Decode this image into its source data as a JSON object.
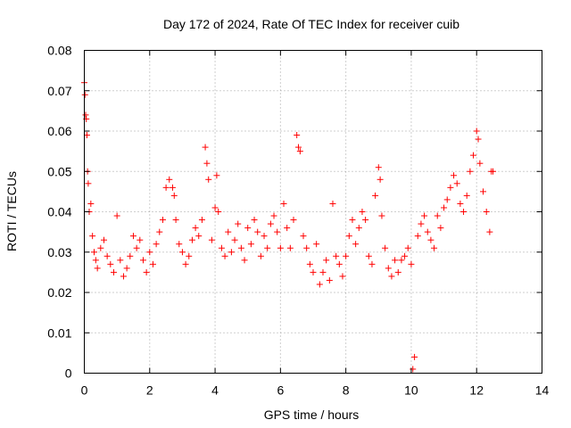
{
  "chart_data": {
    "type": "scatter",
    "title": "Day 172 of 2024, Rate Of TEC Index for receiver cuib",
    "xlabel": "GPS time / hours",
    "ylabel": "ROTI / TECUs",
    "xlim": [
      0,
      14
    ],
    "ylim": [
      0,
      0.08
    ],
    "xticks": [
      0,
      2,
      4,
      6,
      8,
      10,
      12,
      14
    ],
    "xtick_labels": [
      "0",
      "2",
      "4",
      "6",
      "8",
      "10",
      "12",
      "14"
    ],
    "yticks": [
      0,
      0.01,
      0.02,
      0.03,
      0.04,
      0.05,
      0.06,
      0.07,
      0.08
    ],
    "ytick_labels": [
      "0",
      "0.01",
      "0.02",
      "0.03",
      "0.04",
      "0.05",
      "0.06",
      "0.07",
      "0.08"
    ],
    "grid": true,
    "marker": "+",
    "marker_color": "#ff0000",
    "series": [
      {
        "name": "ROTI",
        "x": [
          0.0,
          0.02,
          0.04,
          0.06,
          0.08,
          0.1,
          0.12,
          0.15,
          0.2,
          0.25,
          0.3,
          0.35,
          0.4,
          0.5,
          0.6,
          0.7,
          0.8,
          0.9,
          1.0,
          1.1,
          1.2,
          1.3,
          1.4,
          1.5,
          1.6,
          1.7,
          1.8,
          1.9,
          2.0,
          2.1,
          2.2,
          2.3,
          2.4,
          2.5,
          2.6,
          2.7,
          2.75,
          2.8,
          2.9,
          3.0,
          3.1,
          3.2,
          3.3,
          3.4,
          3.5,
          3.6,
          3.7,
          3.75,
          3.8,
          3.9,
          4.0,
          4.05,
          4.1,
          4.2,
          4.3,
          4.4,
          4.5,
          4.6,
          4.7,
          4.8,
          4.9,
          5.0,
          5.1,
          5.2,
          5.3,
          5.4,
          5.5,
          5.6,
          5.7,
          5.8,
          5.9,
          6.0,
          6.1,
          6.2,
          6.3,
          6.4,
          6.5,
          6.55,
          6.6,
          6.7,
          6.8,
          6.9,
          7.0,
          7.1,
          7.2,
          7.3,
          7.4,
          7.5,
          7.6,
          7.7,
          7.8,
          7.9,
          8.0,
          8.1,
          8.2,
          8.3,
          8.4,
          8.5,
          8.6,
          8.7,
          8.8,
          8.9,
          9.0,
          9.05,
          9.1,
          9.2,
          9.3,
          9.4,
          9.5,
          9.6,
          9.7,
          9.8,
          9.9,
          10.0,
          10.05,
          10.1,
          10.2,
          10.3,
          10.4,
          10.5,
          10.6,
          10.7,
          10.8,
          10.9,
          11.0,
          11.1,
          11.2,
          11.3,
          11.4,
          11.5,
          11.6,
          11.7,
          11.8,
          11.9,
          12.0,
          12.05,
          12.1,
          12.2,
          12.3,
          12.4,
          12.45,
          12.5
        ],
        "y": [
          0.072,
          0.069,
          0.064,
          0.063,
          0.059,
          0.05,
          0.047,
          0.04,
          0.042,
          0.034,
          0.03,
          0.028,
          0.026,
          0.031,
          0.033,
          0.029,
          0.027,
          0.025,
          0.039,
          0.028,
          0.024,
          0.026,
          0.029,
          0.034,
          0.031,
          0.033,
          0.028,
          0.025,
          0.03,
          0.027,
          0.032,
          0.035,
          0.038,
          0.046,
          0.048,
          0.046,
          0.044,
          0.038,
          0.032,
          0.03,
          0.027,
          0.029,
          0.033,
          0.036,
          0.034,
          0.038,
          0.056,
          0.052,
          0.048,
          0.033,
          0.041,
          0.049,
          0.04,
          0.031,
          0.029,
          0.035,
          0.03,
          0.033,
          0.037,
          0.031,
          0.028,
          0.036,
          0.032,
          0.038,
          0.035,
          0.029,
          0.034,
          0.031,
          0.037,
          0.039,
          0.035,
          0.031,
          0.042,
          0.036,
          0.031,
          0.038,
          0.059,
          0.056,
          0.055,
          0.034,
          0.031,
          0.027,
          0.025,
          0.032,
          0.022,
          0.025,
          0.028,
          0.023,
          0.042,
          0.029,
          0.027,
          0.024,
          0.029,
          0.034,
          0.038,
          0.032,
          0.036,
          0.04,
          0.038,
          0.029,
          0.027,
          0.044,
          0.051,
          0.048,
          0.039,
          0.031,
          0.026,
          0.024,
          0.028,
          0.025,
          0.028,
          0.029,
          0.031,
          0.027,
          0.001,
          0.004,
          0.034,
          0.037,
          0.039,
          0.035,
          0.033,
          0.031,
          0.039,
          0.036,
          0.041,
          0.043,
          0.046,
          0.049,
          0.047,
          0.042,
          0.04,
          0.044,
          0.05,
          0.054,
          0.06,
          0.058,
          0.052,
          0.045,
          0.04,
          0.035,
          0.05,
          0.05
        ]
      }
    ]
  }
}
